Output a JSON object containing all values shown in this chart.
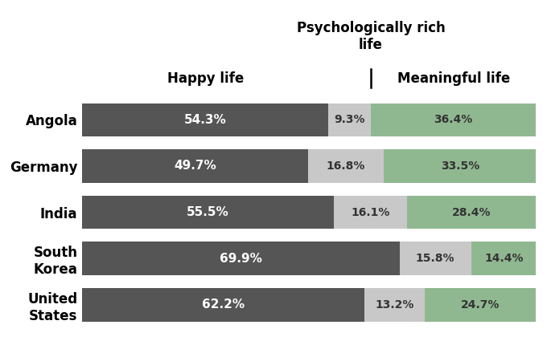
{
  "countries": [
    "Angola",
    "Germany",
    "India",
    "South\nKorea",
    "United\nStates"
  ],
  "happy": [
    54.3,
    49.7,
    55.5,
    69.9,
    62.2
  ],
  "psych": [
    9.3,
    16.8,
    16.1,
    15.8,
    13.2
  ],
  "meaningful": [
    36.4,
    33.5,
    28.4,
    14.4,
    24.7
  ],
  "color_happy": "#555555",
  "color_psych": "#c8c8c8",
  "color_meaningful": "#90b890",
  "label_happy": "Happy life",
  "label_psych": "Psychologically rich\nlife",
  "label_meaningful": "Meaningful life",
  "bg_color": "#ffffff",
  "bar_height": 0.72,
  "fig_width": 6.8,
  "fig_height": 4.2,
  "dpi": 100,
  "xlim_max": 100
}
